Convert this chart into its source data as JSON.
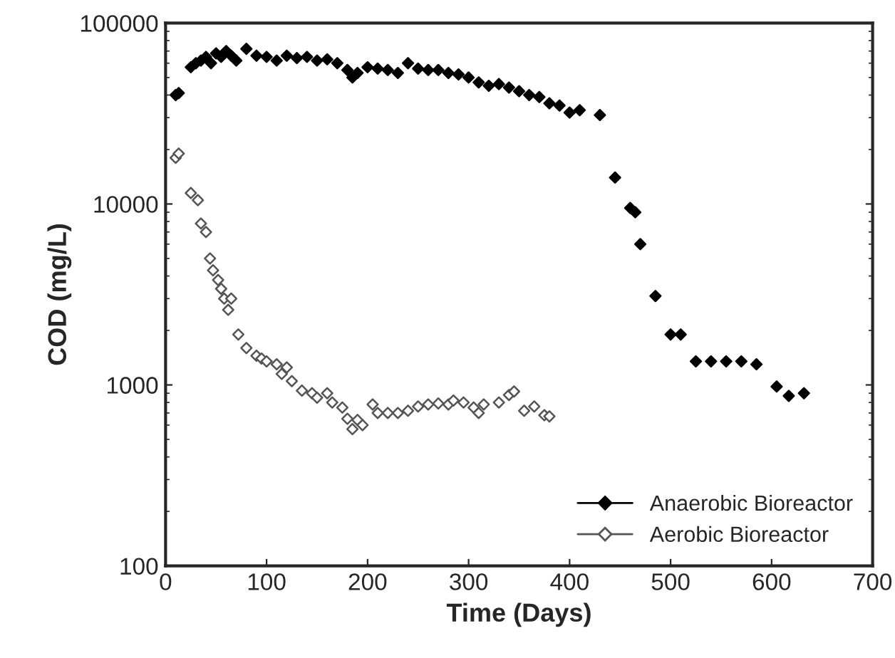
{
  "chart_data": {
    "type": "scatter",
    "xlabel": "Time (Days)",
    "ylabel": "COD (mg/L)",
    "log": "y",
    "grid": false,
    "legend": "bottom right",
    "marker": "diamond",
    "xlim": [
      0,
      700
    ],
    "xticks": [
      0,
      100,
      200,
      300,
      400,
      500,
      600,
      700
    ],
    "ylim": [
      100,
      100000
    ],
    "yticks": [
      100,
      1000,
      10000,
      100000
    ],
    "series": [
      {
        "name": "Anaerobic Bioreactor",
        "color": "#000000",
        "x": [
          10,
          13,
          25,
          30,
          35,
          40,
          45,
          50,
          55,
          60,
          65,
          70,
          80,
          90,
          100,
          110,
          120,
          130,
          140,
          150,
          160,
          170,
          180,
          185,
          190,
          200,
          210,
          220,
          230,
          240,
          250,
          260,
          270,
          280,
          290,
          300,
          310,
          320,
          330,
          340,
          350,
          360,
          370,
          380,
          390,
          400,
          410,
          430,
          445,
          460,
          465,
          470,
          485,
          500,
          510,
          525,
          540,
          555,
          570,
          585,
          605,
          617,
          632
        ],
        "values": [
          40000,
          41000,
          57000,
          60000,
          62000,
          65000,
          60000,
          68000,
          65000,
          70000,
          66000,
          62000,
          72000,
          66000,
          65000,
          62000,
          66000,
          64000,
          65000,
          62000,
          63000,
          60000,
          55000,
          50000,
          53000,
          57000,
          56000,
          55000,
          53000,
          60000,
          56000,
          55000,
          55000,
          53000,
          52000,
          50000,
          47000,
          45000,
          46000,
          44000,
          42000,
          40000,
          39000,
          36000,
          35000,
          32000,
          33000,
          31000,
          14000,
          9500,
          9000,
          6000,
          3100,
          1900,
          1900,
          1350,
          1350,
          1350,
          1350,
          1300,
          980,
          870,
          900
        ]
      },
      {
        "name": "Aerobic Bioreactor",
        "color": "#555555",
        "x": [
          10,
          13,
          25,
          32,
          35,
          40,
          44,
          47,
          52,
          55,
          58,
          62,
          65,
          72,
          80,
          90,
          95,
          100,
          110,
          115,
          120,
          125,
          135,
          145,
          150,
          160,
          165,
          175,
          180,
          185,
          190,
          195,
          205,
          210,
          220,
          230,
          240,
          250,
          260,
          270,
          280,
          285,
          295,
          305,
          310,
          315,
          330,
          340,
          345,
          355,
          365,
          375,
          380
        ],
        "values": [
          18000,
          19000,
          11500,
          10500,
          7800,
          7000,
          5000,
          4300,
          3800,
          3400,
          3000,
          2600,
          3000,
          1900,
          1600,
          1450,
          1400,
          1350,
          1300,
          1150,
          1250,
          1050,
          930,
          900,
          850,
          900,
          800,
          750,
          650,
          570,
          640,
          600,
          780,
          700,
          700,
          700,
          720,
          760,
          780,
          790,
          780,
          820,
          800,
          750,
          700,
          780,
          800,
          880,
          920,
          720,
          760,
          680,
          670
        ]
      }
    ]
  }
}
